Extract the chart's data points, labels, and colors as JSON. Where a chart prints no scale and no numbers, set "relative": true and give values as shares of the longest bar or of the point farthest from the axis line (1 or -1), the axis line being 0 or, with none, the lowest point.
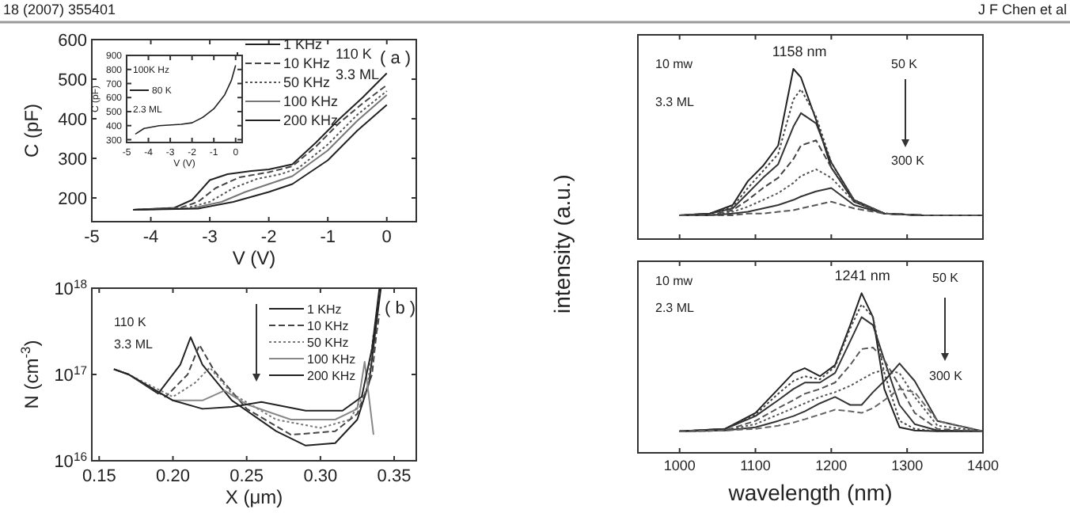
{
  "chart_data": [
    {
      "type": "line",
      "xlabel": "V (V)",
      "ylabel": "C (pF)",
      "xlim": [
        -5,
        0.5
      ],
      "ylim": [
        140,
        600
      ],
      "xticks": [
        -5,
        -4,
        -3,
        -2,
        -1,
        0
      ],
      "yticks": [
        200,
        300,
        400,
        500,
        600
      ],
      "legend": "top right",
      "grid": false,
      "annotations": [
        "18 (2007) 355401",
        "110 K",
        "3.3 ML",
        "( a )"
      ],
      "series": [
        {
          "name": "1 KHz",
          "color": "#222222",
          "line_style": "solid",
          "x": [
            -4.3,
            -3.6,
            -3.3,
            -3.0,
            -2.7,
            -2.3,
            -2.0,
            -1.6,
            -1.2,
            -0.8,
            -0.4,
            0
          ],
          "values": [
            170,
            175,
            195,
            245,
            260,
            268,
            272,
            285,
            340,
            400,
            455,
            515
          ]
        },
        {
          "name": "10 KHz",
          "color": "#444444",
          "line_style": "dashed",
          "x": [
            -4.3,
            -3.5,
            -3.2,
            -2.9,
            -2.5,
            -2.0,
            -1.6,
            -1.2,
            -0.8,
            -0.4,
            0
          ],
          "values": [
            170,
            175,
            190,
            225,
            252,
            265,
            280,
            330,
            390,
            440,
            485
          ]
        },
        {
          "name": "50 KHz",
          "color": "#555555",
          "line_style": "dotted",
          "x": [
            -4.3,
            -3.4,
            -3.0,
            -2.6,
            -2.2,
            -1.8,
            -1.5,
            -1.0,
            -0.5,
            0
          ],
          "values": [
            170,
            174,
            190,
            225,
            248,
            260,
            275,
            335,
            410,
            470
          ]
        },
        {
          "name": "100 KHz",
          "color": "#777777",
          "line_style": "solid",
          "x": [
            -4.3,
            -3.3,
            -2.8,
            -2.4,
            -2.0,
            -1.6,
            -1.0,
            -0.5,
            0
          ],
          "values": [
            170,
            174,
            190,
            215,
            235,
            255,
            320,
            395,
            460
          ]
        },
        {
          "name": "200 KHz",
          "color": "#222222",
          "line_style": "solid",
          "x": [
            -4.3,
            -3.2,
            -2.6,
            -2.0,
            -1.6,
            -1.0,
            -0.5,
            0
          ],
          "values": [
            170,
            173,
            190,
            215,
            235,
            295,
            370,
            435
          ]
        }
      ]
    },
    {
      "type": "line",
      "xlabel": "V (V)",
      "ylabel": "C (pF)",
      "xlim": [
        -5,
        0.3
      ],
      "ylim": [
        280,
        900
      ],
      "xticks": [
        -5,
        -4,
        -3,
        -2,
        -1,
        0
      ],
      "yticks": [
        300,
        400,
        500,
        600,
        700,
        800,
        900
      ],
      "legend": "top left",
      "annotations": [
        "100K Hz",
        "2.3 ML"
      ],
      "series": [
        {
          "name": "80 K",
          "color": "#222222",
          "line_style": "solid",
          "x": [
            -4.6,
            -4.2,
            -3.5,
            -2.5,
            -2.0,
            -1.5,
            -1.0,
            -0.5,
            -0.2,
            0
          ],
          "values": [
            340,
            380,
            400,
            410,
            420,
            460,
            520,
            620,
            720,
            830
          ]
        }
      ]
    },
    {
      "type": "line",
      "xlabel": "X (μm)",
      "ylabel": "N (cm$^{-3}$)",
      "log": true,
      "xlim": [
        0.145,
        0.365
      ],
      "ylim": [
        1e+16,
        1e+18
      ],
      "xticks": [
        0.15,
        {
          "value": 0.2,
          "label": "0.20"
        },
        0.25,
        {
          "value": 0.3,
          "label": "0.30"
        },
        0.35
      ],
      "yticks": [
        {
          "value": 1e+16,
          "label": "10$^{16}$"
        },
        {
          "value": 1e+17,
          "label": "10$^{17}$"
        },
        {
          "value": 1e+18,
          "label": "10$^{18}$"
        }
      ],
      "legend": "top right",
      "annotations": [
        "110 K",
        "3.3 ML",
        "( b )"
      ],
      "series": [
        {
          "name": "1 KHz",
          "color": "#222222",
          "line_style": "solid",
          "x": [
            0.16,
            0.17,
            0.19,
            0.205,
            0.212,
            0.22,
            0.24,
            0.27,
            0.29,
            0.31,
            0.325,
            0.333,
            0.338,
            0.341
          ],
          "values": [
            1.15e+17,
            1e+17,
            6e+16,
            1.3e+17,
            2.7e+17,
            1.3e+17,
            5e+16,
            2.2e+16,
            1.5e+16,
            1.6e+16,
            3e+16,
            8e+16,
            4e+17,
            1e+18
          ]
        },
        {
          "name": "10 KHz",
          "color": "#444444",
          "line_style": "dashed",
          "x": [
            0.16,
            0.17,
            0.195,
            0.21,
            0.218,
            0.228,
            0.25,
            0.28,
            0.31,
            0.325,
            0.335,
            0.338,
            0.34
          ],
          "values": [
            1.15e+17,
            1e+17,
            5.5e+16,
            1e+17,
            2.2e+17,
            1.1e+17,
            4e+16,
            2e+16,
            2.2e+16,
            3.5e+16,
            1e+17,
            3e+17,
            5e+17
          ]
        },
        {
          "name": "50 KHz",
          "color": "#777777",
          "line_style": "dotted",
          "x": [
            0.16,
            0.17,
            0.2,
            0.215,
            0.225,
            0.24,
            0.27,
            0.3,
            0.32,
            0.332,
            0.336
          ],
          "values": [
            1.15e+17,
            1e+17,
            5.5e+16,
            8e+16,
            1.2e+17,
            6e+16,
            3e+16,
            2.4e+16,
            3e+16,
            7e+16,
            3e+17
          ]
        },
        {
          "name": "100 KHz",
          "color": "#888888",
          "line_style": "solid",
          "x": [
            0.16,
            0.17,
            0.2,
            0.22,
            0.235,
            0.25,
            0.28,
            0.31,
            0.325,
            0.33,
            0.336
          ],
          "values": [
            1.15e+17,
            1e+17,
            5e+16,
            5e+16,
            6.5e+16,
            4.5e+16,
            3e+16,
            3e+16,
            4e+16,
            1.4e+17,
            2e+16
          ]
        },
        {
          "name": "200 KHz",
          "color": "#222222",
          "line_style": "solid",
          "x": [
            0.16,
            0.17,
            0.2,
            0.22,
            0.24,
            0.26,
            0.29,
            0.315,
            0.328,
            0.335,
            0.34
          ],
          "values": [
            1.15e+17,
            1e+17,
            5e+16,
            4e+16,
            4.2e+16,
            4.8e+16,
            3.8e+16,
            3.8e+16,
            5.5e+16,
            2e+17,
            1e+18
          ]
        }
      ]
    },
    {
      "type": "line",
      "relative": true,
      "ylabel": "intensity (a.u.)",
      "xlim": [
        945,
        1400
      ],
      "xticks": [
        1000,
        1100,
        1200,
        1300,
        1400
      ],
      "tick_labels": false,
      "annotations": [
        "J F Chen et al",
        "10 mw",
        "3.3 ML",
        {
          "text": "1158 nm",
          "x": 1158,
          "y": 1.0
        },
        "50 K",
        "300 K"
      ],
      "series": [
        {
          "color": "#222222",
          "line_style": "solid",
          "x": [
            1000,
            1040,
            1070,
            1090,
            1110,
            1130,
            1150,
            1160,
            1180,
            1200,
            1230,
            1270,
            1320,
            1400
          ],
          "values": [
            0.14,
            0.15,
            0.2,
            0.34,
            0.43,
            0.55,
            1.0,
            0.95,
            0.7,
            0.42,
            0.22,
            0.15,
            0.14,
            0.14
          ]
        },
        {
          "color": "#444444",
          "line_style": "dotted",
          "x": [
            1000,
            1040,
            1070,
            1090,
            1110,
            1130,
            1150,
            1160,
            1180,
            1200,
            1230,
            1270,
            1320,
            1400
          ],
          "values": [
            0.14,
            0.15,
            0.19,
            0.3,
            0.4,
            0.5,
            0.82,
            0.88,
            0.72,
            0.45,
            0.23,
            0.15,
            0.14,
            0.14
          ]
        },
        {
          "color": "#333333",
          "line_style": "solid",
          "x": [
            1000,
            1040,
            1070,
            1090,
            1110,
            1130,
            1150,
            1160,
            1180,
            1200,
            1230,
            1270,
            1320,
            1400
          ],
          "values": [
            0.14,
            0.15,
            0.18,
            0.27,
            0.36,
            0.44,
            0.66,
            0.74,
            0.68,
            0.45,
            0.23,
            0.15,
            0.14,
            0.14
          ]
        },
        {
          "color": "#444444",
          "line_style": "dashed",
          "x": [
            1000,
            1040,
            1070,
            1090,
            1110,
            1130,
            1150,
            1160,
            1180,
            1200,
            1230,
            1270,
            1320,
            1400
          ],
          "values": [
            0.14,
            0.14,
            0.17,
            0.23,
            0.3,
            0.36,
            0.47,
            0.55,
            0.58,
            0.42,
            0.23,
            0.15,
            0.14,
            0.14
          ]
        },
        {
          "color": "#555555",
          "line_style": "dotted",
          "x": [
            1000,
            1040,
            1070,
            1090,
            1110,
            1130,
            1150,
            1160,
            1180,
            1200,
            1230,
            1270,
            1320,
            1400
          ],
          "values": [
            0.14,
            0.14,
            0.16,
            0.19,
            0.23,
            0.27,
            0.33,
            0.37,
            0.41,
            0.36,
            0.22,
            0.15,
            0.14,
            0.14
          ]
        },
        {
          "color": "#333333",
          "line_style": "solid",
          "x": [
            1000,
            1040,
            1070,
            1090,
            1110,
            1130,
            1150,
            1160,
            1180,
            1200,
            1230,
            1270,
            1320,
            1400
          ],
          "values": [
            0.14,
            0.14,
            0.15,
            0.16,
            0.18,
            0.2,
            0.23,
            0.25,
            0.28,
            0.3,
            0.2,
            0.15,
            0.14,
            0.14
          ]
        },
        {
          "color": "#555555",
          "line_style": "dashed",
          "x": [
            1000,
            1040,
            1070,
            1090,
            1110,
            1130,
            1150,
            1160,
            1180,
            1200,
            1230,
            1270,
            1320,
            1400
          ],
          "values": [
            0.14,
            0.14,
            0.14,
            0.15,
            0.15,
            0.16,
            0.17,
            0.18,
            0.2,
            0.22,
            0.18,
            0.15,
            0.14,
            0.14
          ]
        }
      ]
    },
    {
      "type": "line",
      "relative": true,
      "xlabel": "wavelength (nm)",
      "xlim": [
        945,
        1400
      ],
      "xticks": [
        1000,
        1100,
        1200,
        1300,
        1400
      ],
      "tick_labels": "x",
      "annotations": [
        "10 mw",
        "2.3 ML",
        {
          "text": "1241 nm",
          "x": 1241,
          "y": 1.0
        },
        "50 K",
        "300 K"
      ],
      "series": [
        {
          "color": "#222222",
          "line_style": "solid",
          "x": [
            1000,
            1060,
            1100,
            1130,
            1150,
            1165,
            1185,
            1205,
            1225,
            1240,
            1255,
            1270,
            1290,
            1310,
            1340,
            1400
          ],
          "values": [
            0.135,
            0.15,
            0.25,
            0.4,
            0.5,
            0.53,
            0.48,
            0.55,
            0.8,
            1.0,
            0.85,
            0.4,
            0.16,
            0.14,
            0.135,
            0.135
          ]
        },
        {
          "color": "#444444",
          "line_style": "dotted",
          "x": [
            1000,
            1060,
            1100,
            1130,
            1150,
            1165,
            1185,
            1205,
            1225,
            1240,
            1255,
            1270,
            1290,
            1310,
            1340,
            1400
          ],
          "values": [
            0.135,
            0.15,
            0.24,
            0.37,
            0.45,
            0.48,
            0.46,
            0.54,
            0.78,
            0.93,
            0.85,
            0.5,
            0.2,
            0.15,
            0.135,
            0.135
          ]
        },
        {
          "color": "#333333",
          "line_style": "solid",
          "x": [
            1000,
            1060,
            1100,
            1130,
            1150,
            1165,
            1185,
            1205,
            1225,
            1240,
            1255,
            1270,
            1290,
            1310,
            1340,
            1400
          ],
          "values": [
            0.135,
            0.15,
            0.23,
            0.33,
            0.4,
            0.44,
            0.44,
            0.5,
            0.7,
            0.85,
            0.8,
            0.58,
            0.3,
            0.18,
            0.14,
            0.135
          ]
        },
        {
          "color": "#555555",
          "line_style": "dashed",
          "x": [
            1000,
            1060,
            1100,
            1130,
            1150,
            1165,
            1185,
            1205,
            1225,
            1240,
            1255,
            1270,
            1290,
            1310,
            1340,
            1400
          ],
          "values": [
            0.135,
            0.14,
            0.2,
            0.28,
            0.33,
            0.37,
            0.4,
            0.44,
            0.55,
            0.65,
            0.66,
            0.58,
            0.42,
            0.25,
            0.15,
            0.135
          ]
        },
        {
          "color": "#555555",
          "line_style": "dotted",
          "x": [
            1000,
            1060,
            1100,
            1130,
            1150,
            1165,
            1185,
            1205,
            1225,
            1240,
            1255,
            1270,
            1290,
            1310,
            1340,
            1400
          ],
          "values": [
            0.135,
            0.14,
            0.18,
            0.24,
            0.28,
            0.31,
            0.35,
            0.38,
            0.42,
            0.46,
            0.5,
            0.52,
            0.5,
            0.35,
            0.17,
            0.135
          ]
        },
        {
          "color": "#333333",
          "line_style": "solid",
          "x": [
            1000,
            1060,
            1100,
            1130,
            1150,
            1165,
            1185,
            1205,
            1225,
            1240,
            1255,
            1270,
            1290,
            1310,
            1340,
            1400
          ],
          "values": [
            0.135,
            0.14,
            0.16,
            0.2,
            0.23,
            0.26,
            0.31,
            0.35,
            0.3,
            0.3,
            0.38,
            0.45,
            0.56,
            0.45,
            0.2,
            0.135
          ]
        },
        {
          "color": "#666666",
          "line_style": "dashed",
          "x": [
            1000,
            1060,
            1100,
            1130,
            1150,
            1165,
            1185,
            1205,
            1225,
            1240,
            1255,
            1270,
            1290,
            1310,
            1340,
            1400
          ],
          "values": [
            0.135,
            0.14,
            0.15,
            0.17,
            0.19,
            0.21,
            0.24,
            0.27,
            0.26,
            0.25,
            0.28,
            0.33,
            0.4,
            0.38,
            0.2,
            0.135
          ]
        }
      ]
    }
  ]
}
